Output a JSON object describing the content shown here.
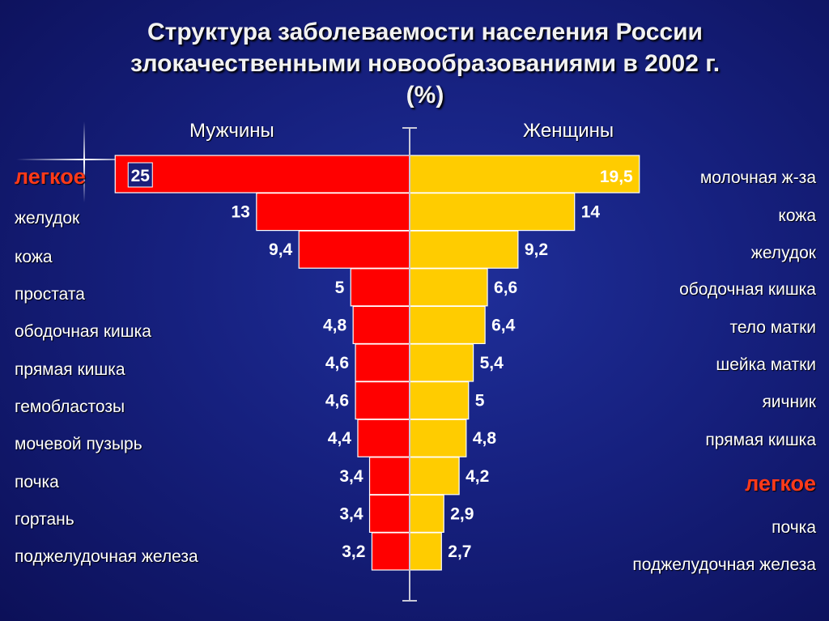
{
  "title_lines": [
    "Структура заболеваемости населения России",
    "злокачественными новообразованиями в 2002 г.",
    "(%)"
  ],
  "chart_data": {
    "type": "bar",
    "men_header": "Мужчины",
    "women_header": "Женщины",
    "men": [
      {
        "label": "легкое",
        "value": 25,
        "value_label": "25",
        "highlight": true
      },
      {
        "label": "желудок",
        "value": 13,
        "value_label": "13"
      },
      {
        "label": "кожа",
        "value": 9.4,
        "value_label": "9,4"
      },
      {
        "label": "простата",
        "value": 5,
        "value_label": "5"
      },
      {
        "label": "ободочная кишка",
        "value": 4.8,
        "value_label": "4,8"
      },
      {
        "label": "прямая кишка",
        "value": 4.6,
        "value_label": "4,6"
      },
      {
        "label": "гемобластозы",
        "value": 4.6,
        "value_label": "4,6"
      },
      {
        "label": "мочевой пузырь",
        "value": 4.4,
        "value_label": "4,4"
      },
      {
        "label": "почка",
        "value": 3.4,
        "value_label": "3,4"
      },
      {
        "label": "гортань",
        "value": 3.4,
        "value_label": "3,4"
      },
      {
        "label": "поджелудочная железа",
        "value": 3.2,
        "value_label": "3,2"
      }
    ],
    "women": [
      {
        "label": "молочная ж-за",
        "value": 19.5,
        "value_label": "19,5"
      },
      {
        "label": "кожа",
        "value": 14,
        "value_label": "14"
      },
      {
        "label": "желудок",
        "value": 9.2,
        "value_label": "9,2"
      },
      {
        "label": "ободочная кишка",
        "value": 6.6,
        "value_label": "6,6"
      },
      {
        "label": "тело матки",
        "value": 6.4,
        "value_label": "6,4"
      },
      {
        "label": "шейка матки",
        "value": 5.4,
        "value_label": "5,4"
      },
      {
        "label": "яичник",
        "value": 5,
        "value_label": "5"
      },
      {
        "label": "прямая кишка",
        "value": 4.8,
        "value_label": "4,8"
      },
      {
        "label": "легкое",
        "value": 4.2,
        "value_label": "4,2",
        "highlight": true
      },
      {
        "label": "почка",
        "value": 2.9,
        "value_label": "2,9"
      },
      {
        "label": "поджелудочная железа",
        "value": 2.7,
        "value_label": "2,7"
      }
    ],
    "colors": {
      "men": "#ff0000",
      "women": "#ffcc00",
      "highlight_text": "#ff3a1a"
    }
  }
}
